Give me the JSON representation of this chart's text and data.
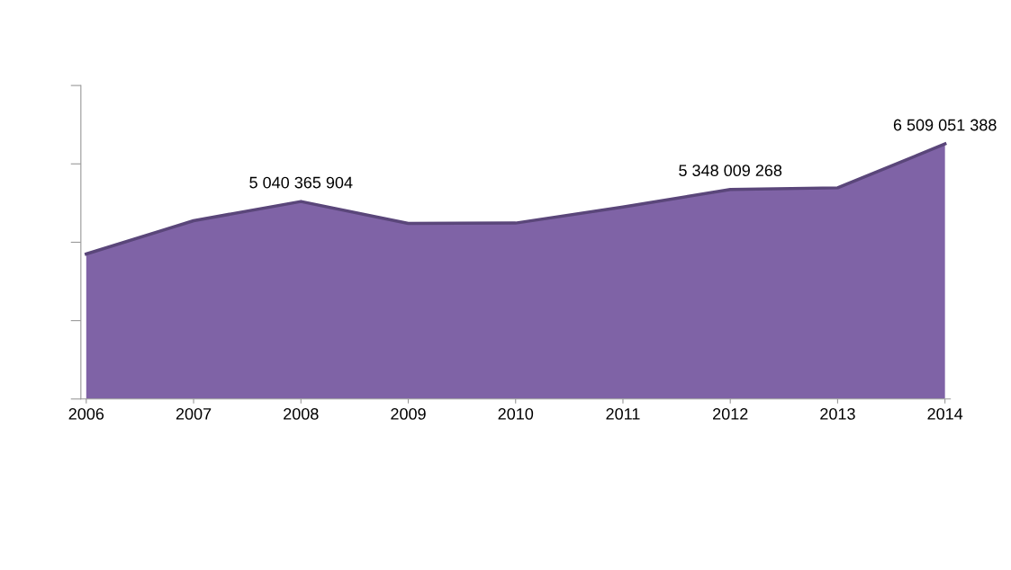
{
  "chart_data": {
    "type": "area",
    "categories": [
      "2006",
      "2007",
      "2008",
      "2009",
      "2010",
      "2011",
      "2012",
      "2013",
      "2014"
    ],
    "series": [
      {
        "color": "#7f63a6",
        "values": [
          3700000000,
          4550000000,
          5040365904,
          4480000000,
          4490000000,
          4900000000,
          5348009268,
          5390000000,
          6509051388
        ],
        "value_labels": [
          null,
          null,
          "5 040 365 904",
          null,
          null,
          null,
          "5 348 009 268",
          null,
          "6 509 051 388"
        ]
      }
    ],
    "ylim": [
      0,
      8000000000
    ],
    "yticks": [
      {
        "value": 0,
        "label": null
      },
      {
        "value": 2000000000,
        "label": null
      },
      {
        "value": 4000000000,
        "label": null
      },
      {
        "value": 6000000000,
        "label": null
      },
      {
        "value": 8000000000,
        "label": null
      }
    ],
    "tick_labels": "x",
    "grid": false
  }
}
